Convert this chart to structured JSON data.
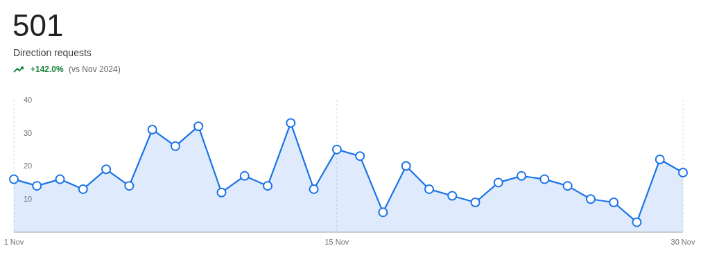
{
  "chart_data": {
    "type": "area",
    "title": "501",
    "subtitle": "Direction requests",
    "annotations": [
      "+142.0%",
      "(vs Nov 2024)"
    ],
    "categories": [
      "1 Nov",
      null,
      null,
      null,
      null,
      null,
      null,
      null,
      null,
      null,
      null,
      null,
      null,
      null,
      "15 Nov",
      null,
      null,
      null,
      null,
      null,
      null,
      null,
      null,
      null,
      null,
      null,
      null,
      null,
      null,
      "30 Nov"
    ],
    "series": [
      {
        "color": "#1a73e8",
        "values": [
          16,
          14,
          16,
          13,
          19,
          14,
          31,
          26,
          32,
          12,
          17,
          14,
          33,
          13,
          25,
          23,
          6,
          20,
          13,
          11,
          9,
          15,
          17,
          16,
          14,
          10,
          9,
          3,
          22,
          18
        ]
      }
    ],
    "ylim": [
      0,
      40
    ],
    "yticks": [
      10,
      20,
      30,
      40
    ],
    "grid": "x",
    "marker": "circle"
  }
}
